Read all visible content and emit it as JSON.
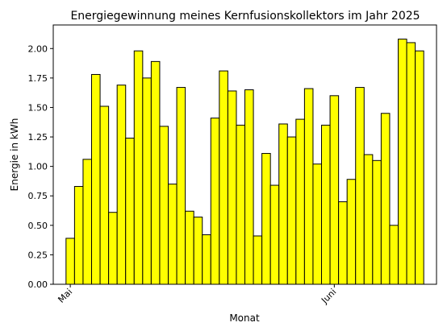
{
  "chart_data": {
    "type": "bar",
    "title": "Energiegewinnung meines Kernfusionskollektors im Jahr 2025",
    "xlabel": "Monat",
    "ylabel": "Energie in kWh",
    "ylim": [
      0,
      2.2
    ],
    "yticks": [
      "0.00",
      "0.25",
      "0.50",
      "0.75",
      "1.00",
      "1.25",
      "1.50",
      "1.75",
      "2.00"
    ],
    "xlim": [
      "2025-04-29",
      "2025-06-13"
    ],
    "xticks": [
      {
        "date": "2025-05-01",
        "label": "Mai"
      },
      {
        "date": "2025-06-01",
        "label": "Juni"
      }
    ],
    "bar_color": "#ffff00",
    "grid": false,
    "start_date": "2025-04-30",
    "values": [
      0.0,
      0.39,
      0.83,
      1.06,
      1.78,
      1.51,
      0.61,
      1.69,
      1.24,
      1.98,
      1.75,
      1.89,
      1.34,
      0.85,
      1.67,
      0.62,
      0.57,
      0.42,
      1.41,
      1.81,
      1.64,
      1.35,
      1.65,
      0.41,
      1.11,
      0.84,
      1.36,
      1.25,
      1.4,
      1.66,
      1.02,
      1.35,
      1.6,
      0.7,
      0.89,
      1.67,
      1.1,
      1.05,
      1.45,
      0.5,
      2.08,
      2.05,
      1.98
    ]
  }
}
